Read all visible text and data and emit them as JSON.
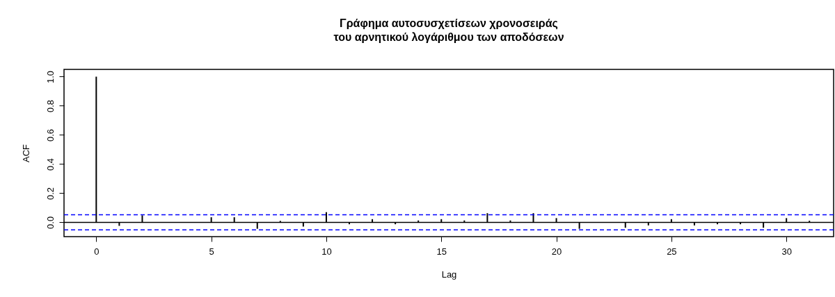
{
  "chart_data": {
    "type": "bar",
    "title": "Γράφημα αυτοσυσχετίσεων χρονοσειράς\nτου αρνητικού λογάριθμου των αποδόσεων",
    "xlabel": "Lag",
    "ylabel": "ACF",
    "x": [
      0,
      1,
      2,
      3,
      4,
      5,
      6,
      7,
      8,
      9,
      10,
      11,
      12,
      13,
      14,
      15,
      16,
      17,
      18,
      19,
      20,
      21,
      22,
      23,
      24,
      25,
      26,
      27,
      28,
      29,
      30,
      31
    ],
    "values": [
      1.0,
      -0.024,
      0.048,
      0.0,
      0.0,
      0.035,
      0.035,
      -0.044,
      0.01,
      -0.029,
      0.07,
      -0.013,
      0.022,
      -0.013,
      0.013,
      0.022,
      0.013,
      0.063,
      0.013,
      0.063,
      0.029,
      -0.044,
      0.0,
      -0.037,
      -0.021,
      0.022,
      -0.021,
      -0.013,
      -0.013,
      -0.037,
      0.029,
      0.011
    ],
    "color": "#000000",
    "xlim": [
      -1.25,
      31.9
    ],
    "xticks": [
      0,
      5,
      10,
      15,
      20,
      25,
      30
    ],
    "ylim": [
      -0.098,
      1.05
    ],
    "yticks": [
      {
        "value": 0,
        "label": "0.0"
      },
      {
        "value": 0.2,
        "label": "0.2"
      },
      {
        "value": 0.4,
        "label": "0.4"
      },
      {
        "value": 0.6,
        "label": "0.6"
      },
      {
        "value": 0.8,
        "label": "0.8"
      },
      {
        "value": 1,
        "label": "1.0"
      }
    ],
    "ref_lines": [
      {
        "axis": "y",
        "value": 0,
        "color": "#000000",
        "line_style": "solid"
      },
      {
        "axis": "y",
        "value": 0.052,
        "color": "#0000ff",
        "line_style": "dashed"
      },
      {
        "axis": "y",
        "value": -0.052,
        "color": "#0000ff",
        "line_style": "dashed"
      }
    ]
  }
}
